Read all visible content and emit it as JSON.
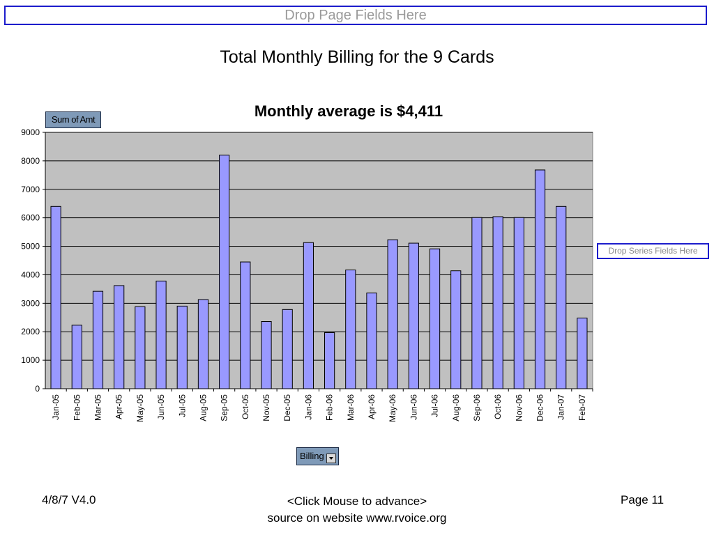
{
  "page_fields_label": "Drop Page Fields Here",
  "slide_title": "Total Monthly Billing for the 9 Cards",
  "data_field_button": "Sum of Amt",
  "series_fields_label": "Drop Series Fields Here",
  "category_field_button": "Billing",
  "footer": {
    "date_version": "4/8/7   V4.0",
    "advance": "<Click Mouse to advance>",
    "source": "source on website www.rvoice.org",
    "page": "Page 11"
  },
  "colors": {
    "bar_fill": "#9999ff",
    "plot_area": "#c0c0c0",
    "frame_border": "#1c1ccc",
    "field_button": "#7f9ab8"
  },
  "icons": {
    "dropdown": "chevron-down-icon"
  },
  "chart_data": {
    "type": "bar",
    "title": "Monthly average is $4,411",
    "xlabel": "",
    "ylabel": "",
    "ylim": [
      0,
      9000
    ],
    "yticks": [
      0,
      1000,
      2000,
      3000,
      4000,
      5000,
      6000,
      7000,
      8000,
      9000
    ],
    "grid": true,
    "legend": "none",
    "categories": [
      "Jan-05",
      "Feb-05",
      "Mar-05",
      "Apr-05",
      "May-05",
      "Jun-05",
      "Jul-05",
      "Aug-05",
      "Sep-05",
      "Oct-05",
      "Nov-05",
      "Dec-05",
      "Jan-06",
      "Feb-06",
      "Mar-06",
      "Apr-06",
      "May-06",
      "Jun-06",
      "Jul-06",
      "Aug-06",
      "Sep-06",
      "Oct-06",
      "Nov-06",
      "Dec-06",
      "Jan-07",
      "Feb-07"
    ],
    "values": [
      6400,
      2230,
      3420,
      3620,
      2880,
      3780,
      2900,
      3130,
      8200,
      4450,
      2360,
      2780,
      5130,
      1970,
      4170,
      3360,
      5230,
      5110,
      4910,
      4140,
      6010,
      6040,
      6010,
      7680,
      6400,
      2480
    ]
  }
}
